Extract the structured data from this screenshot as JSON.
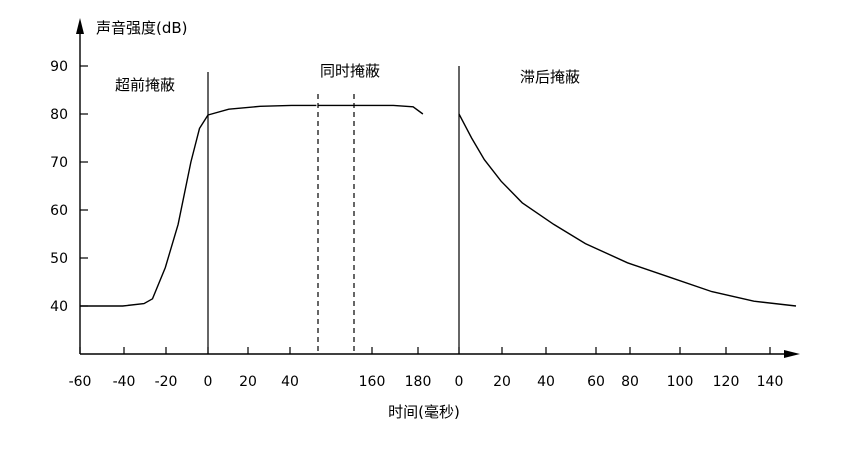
{
  "chart_data": {
    "type": "line",
    "axes": {
      "y": {
        "label": "声音强度(dB)",
        "ticks": [
          40,
          50,
          60,
          70,
          80,
          90
        ],
        "range": [
          30,
          95
        ]
      },
      "x": {
        "label": "时间(毫秒)",
        "ticks": [
          "-60",
          "-40",
          "-20",
          "0",
          "20",
          "40",
          "160",
          "180",
          "0",
          "20",
          "40",
          "60",
          "80",
          "100",
          "120",
          "140"
        ]
      }
    },
    "segments": [
      {
        "label": "超前掩蔽",
        "x_range": [
          -60,
          0
        ],
        "points": [
          [
            -60,
            40
          ],
          [
            -40,
            40
          ],
          [
            -30,
            40.5
          ],
          [
            -26,
            41.5
          ],
          [
            -20,
            48
          ],
          [
            -14,
            57
          ],
          [
            -8,
            70
          ],
          [
            -4,
            77
          ],
          [
            0,
            79.8
          ]
        ]
      },
      {
        "label": "同时掩蔽",
        "x_range": [
          0,
          180
        ],
        "points": [
          [
            0,
            79.8
          ],
          [
            10,
            81
          ],
          [
            25,
            81.6
          ],
          [
            40,
            81.8
          ],
          [
            52,
            81.8
          ],
          [
            145,
            81.8
          ],
          [
            165,
            81.8
          ],
          [
            175,
            81.5
          ],
          [
            180,
            80
          ]
        ]
      },
      {
        "label": "滞后掩蔽",
        "x_range": [
          0,
          160
        ],
        "points": [
          [
            0,
            80
          ],
          [
            6,
            75
          ],
          [
            12,
            70.5
          ],
          [
            20,
            66
          ],
          [
            30,
            61.5
          ],
          [
            45,
            57
          ],
          [
            60,
            53
          ],
          [
            80,
            49
          ],
          [
            100,
            46
          ],
          [
            120,
            43
          ],
          [
            140,
            41
          ],
          [
            160,
            40
          ]
        ]
      }
    ]
  }
}
